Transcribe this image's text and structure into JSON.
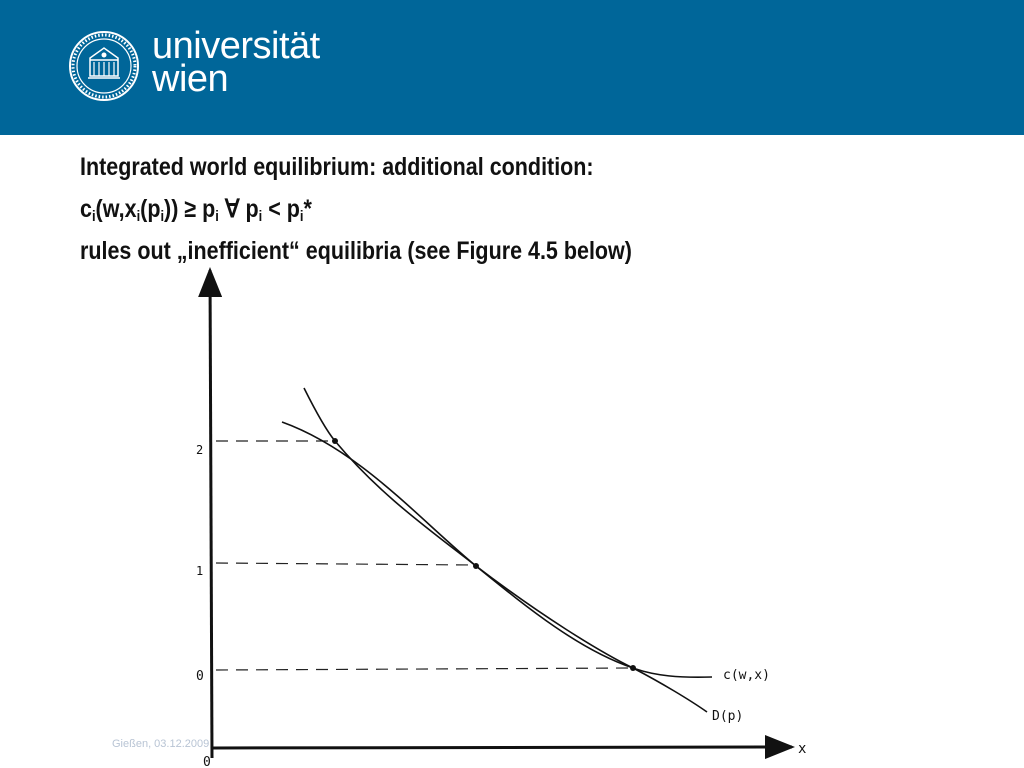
{
  "header": {
    "logo_line1": "universität",
    "logo_line2": "wien",
    "color": "#006699"
  },
  "title": {
    "line1": "Integrated world equilibrium: additional condition:",
    "line2_parts": [
      "c",
      "i",
      "(w,x",
      "i",
      "(p",
      "i",
      ")) ≥ p",
      "i",
      " ∀ p",
      "i",
      " < p",
      "i",
      "*"
    ],
    "line3": "rules out „inefficient“ equilibria (see Figure 4.5 below)"
  },
  "footer": {
    "text": "Gießen, 03.12.2009"
  },
  "chart_data": {
    "type": "line",
    "xlabel": "x",
    "origin_label": "0",
    "y_ticks": [
      "2",
      "1",
      "0"
    ],
    "series": [
      {
        "name": "c(w,x)",
        "label": "c(w,x)"
      },
      {
        "name": "D(p)",
        "label": "D(p)"
      }
    ],
    "equilibria": [
      {
        "level": "2"
      },
      {
        "level": "1"
      },
      {
        "level": "0"
      }
    ]
  }
}
